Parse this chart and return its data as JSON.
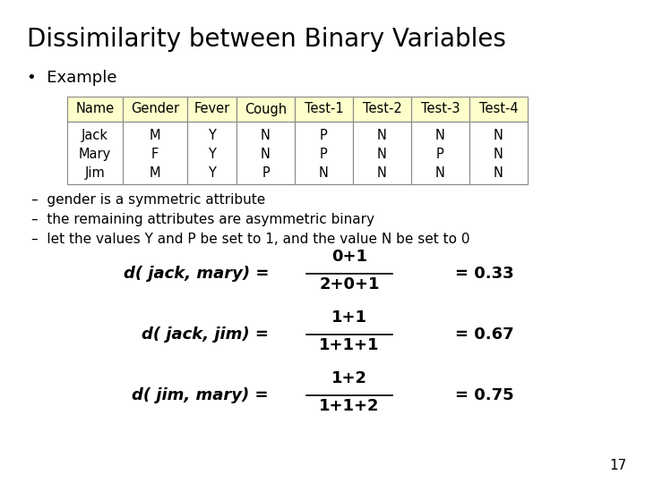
{
  "title": "Dissimilarity between Binary Variables",
  "bullet": "Example",
  "table_headers": [
    "Name",
    "Gender",
    "Fever",
    "Cough",
    "Test-1",
    "Test-2",
    "Test-3",
    "Test-4"
  ],
  "table_col1": [
    "Jack",
    "Mary",
    "Jim"
  ],
  "table_data": [
    [
      "M",
      "F",
      "M"
    ],
    [
      "Y",
      "Y",
      "Y"
    ],
    [
      "N",
      "N",
      "P"
    ],
    [
      "P",
      "P",
      "N"
    ],
    [
      "N",
      "N",
      "N"
    ],
    [
      "N",
      "P",
      "N"
    ],
    [
      "N",
      "N",
      "N"
    ]
  ],
  "header_bg": "#ffffcc",
  "row_bg": "#ffffff",
  "table_border": "#888888",
  "dash_items": [
    "gender is a symmetric attribute",
    "the remaining attributes are asymmetric binary",
    "let the values Y and P be set to 1, and the value N be set to 0"
  ],
  "formulas": [
    {
      "left": "d( jack, mary) =",
      "num": "0+1",
      "den": "2+0+1",
      "right": "= 0.33"
    },
    {
      "left": "d( jack, jim) =",
      "num": "1+1",
      "den": "1+1+1",
      "right": "= 0.67"
    },
    {
      "left": "d( jim, mary) =",
      "num": "1+2",
      "den": "1+1+2",
      "right": "= 0.75"
    }
  ],
  "page_number": "17",
  "bg_color": "#ffffff",
  "text_color": "#000000",
  "title_fontsize": 20,
  "body_fontsize": 11,
  "table_fontsize": 10.5
}
